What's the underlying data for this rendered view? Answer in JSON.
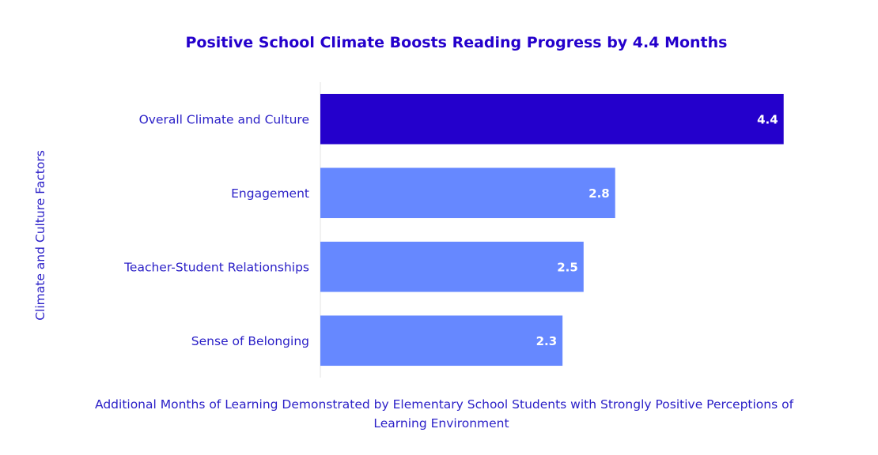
{
  "chart_data": {
    "type": "bar",
    "orientation": "horizontal",
    "title": "Positive School Climate Boosts Reading Progress by 4.4 Months",
    "xlabel": "Additional Months of Learning Demonstrated by Elementary School Students with Strongly Positive Perceptions of Learning Environment",
    "ylabel": "Climate and Culture Factors",
    "categories": [
      "Overall Climate and Culture",
      "Engagement",
      "Teacher-Student Relationships",
      "Sense of Belonging"
    ],
    "values": [
      4.4,
      2.8,
      2.5,
      2.3
    ],
    "data_labels": [
      "4.4",
      "2.8",
      "2.5",
      "2.3"
    ],
    "xlim": [
      0,
      4.62
    ],
    "grid": false,
    "colors": {
      "highlight": "#2400cc",
      "bar": "#6688ff",
      "text": "#2a1fc7",
      "title": "#2400cc",
      "axis_line": "#e3e3e3"
    },
    "highlight_index": 0
  }
}
